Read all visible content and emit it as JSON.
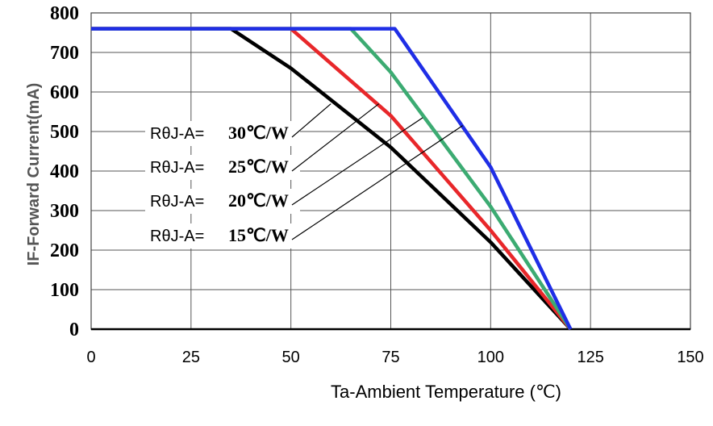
{
  "chart_data": {
    "type": "line",
    "xlabel": "Ta-Ambient Temperature (℃)",
    "ylabel": "IF-Forward Current(mA)",
    "xlim": [
      0,
      150
    ],
    "ylim": [
      0,
      800
    ],
    "x_ticks": [
      "0",
      "25",
      "50",
      "75",
      "100",
      "125",
      "150"
    ],
    "y_ticks": [
      "0",
      "100",
      "200",
      "300",
      "400",
      "500",
      "600",
      "700",
      "800"
    ],
    "grid": true,
    "series": [
      {
        "color": "#000000",
        "points": [
          [
            0,
            760
          ],
          [
            35,
            760
          ],
          [
            50,
            660
          ],
          [
            75,
            460
          ],
          [
            100,
            220
          ],
          [
            120,
            0
          ]
        ]
      },
      {
        "color": "#e8272a",
        "points": [
          [
            0,
            760
          ],
          [
            50,
            760
          ],
          [
            75,
            540
          ],
          [
            100,
            250
          ],
          [
            120,
            0
          ]
        ]
      },
      {
        "color": "#3cab72",
        "points": [
          [
            0,
            760
          ],
          [
            65,
            760
          ],
          [
            75,
            650
          ],
          [
            100,
            310
          ],
          [
            120,
            0
          ]
        ]
      },
      {
        "color": "#1f2ee6",
        "points": [
          [
            0,
            760
          ],
          [
            76,
            760
          ],
          [
            100,
            410
          ],
          [
            120,
            0
          ]
        ]
      }
    ],
    "annotations": [
      {
        "prefix": "RθJ-A=",
        "value": "30℃/W",
        "target": [
          60,
          570
        ]
      },
      {
        "prefix": "RθJ-A=",
        "value": "25℃/W",
        "target": [
          72,
          570
        ]
      },
      {
        "prefix": "RθJ-A=",
        "value": "20℃/W",
        "target": [
          83,
          535
        ]
      },
      {
        "prefix": "RθJ-A=",
        "value": "15℃/W",
        "target": [
          93,
          515
        ]
      }
    ]
  }
}
